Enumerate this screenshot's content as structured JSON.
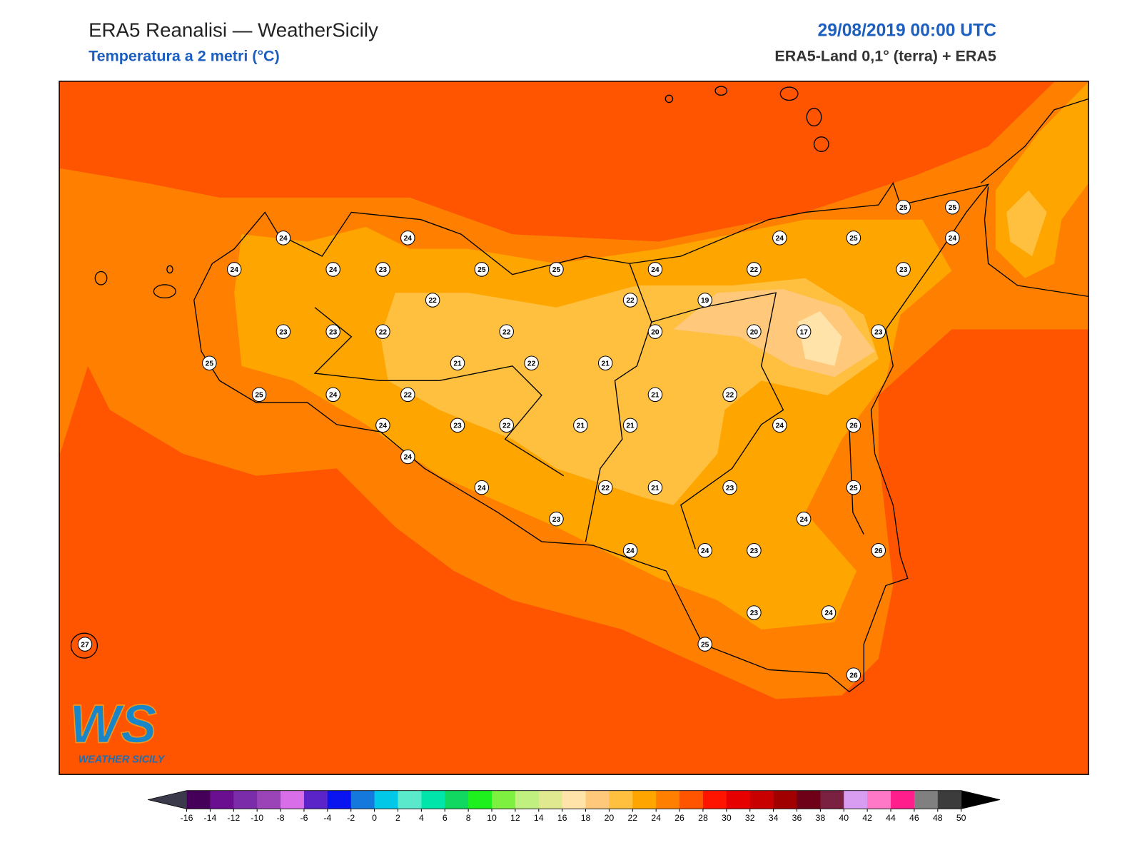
{
  "header": {
    "title": "ERA5 Reanalisi — WeatherSicily",
    "subtitle": "Temperatura a 2 metri (°C)",
    "datetime": "29/08/2019 00:00 UTC",
    "source": "ERA5-Land 0,1° (terra) + ERA5"
  },
  "stations": [
    {
      "value": 24
    },
    {
      "value": 24
    },
    {
      "value": 24
    },
    {
      "value": 24
    },
    {
      "value": 23
    },
    {
      "value": 25
    },
    {
      "value": 25
    },
    {
      "value": 24
    },
    {
      "value": 24
    },
    {
      "value": 25
    },
    {
      "value": 25
    },
    {
      "value": 25
    },
    {
      "value": 24
    },
    {
      "value": 22
    },
    {
      "value": 23
    },
    {
      "value": 22
    },
    {
      "value": 22
    },
    {
      "value": 19
    },
    {
      "value": 23
    },
    {
      "value": 23
    },
    {
      "value": 22
    },
    {
      "value": 22
    },
    {
      "value": 20
    },
    {
      "value": 20
    },
    {
      "value": 17
    },
    {
      "value": 23
    },
    {
      "value": 25
    },
    {
      "value": 21
    },
    {
      "value": 22
    },
    {
      "value": 21
    },
    {
      "value": 25
    },
    {
      "value": 24
    },
    {
      "value": 22
    },
    {
      "value": 21
    },
    {
      "value": 22
    },
    {
      "value": 24
    },
    {
      "value": 23
    },
    {
      "value": 22
    },
    {
      "value": 21
    },
    {
      "value": 21
    },
    {
      "value": 24
    },
    {
      "value": 26
    },
    {
      "value": 24
    },
    {
      "value": 24
    },
    {
      "value": 22
    },
    {
      "value": 21
    },
    {
      "value": 23
    },
    {
      "value": 25
    },
    {
      "value": 24
    },
    {
      "value": 23
    },
    {
      "value": 24
    },
    {
      "value": 24
    },
    {
      "value": 23
    },
    {
      "value": 26
    },
    {
      "value": 23
    },
    {
      "value": 24
    },
    {
      "value": 25
    },
    {
      "value": 27
    },
    {
      "value": 26
    }
  ],
  "colorbar": {
    "ticks": [
      -16,
      -14,
      -12,
      -10,
      -8,
      -6,
      -4,
      -2,
      0,
      2,
      4,
      6,
      8,
      10,
      12,
      14,
      16,
      18,
      20,
      22,
      24,
      26,
      28,
      30,
      32,
      34,
      36,
      38,
      40,
      42,
      44,
      46,
      48,
      50
    ],
    "colors": [
      "#45005a",
      "#6a0f90",
      "#7b2ca8",
      "#9b44b8",
      "#d86ee8",
      "#5a24c8",
      "#0a14f0",
      "#1478dc",
      "#00c8e6",
      "#5aeacb",
      "#00e6aa",
      "#10d860",
      "#1ef01e",
      "#7ef040",
      "#c0f080",
      "#e0e890",
      "#ffe3a8",
      "#ffc87a",
      "#ffc040",
      "#ffa500",
      "#ff8000",
      "#ff5400",
      "#ff1400",
      "#e60000",
      "#c80000",
      "#a00000",
      "#6e0018",
      "#7a2040",
      "#d89cf0",
      "#ff78c8",
      "#ff1e8c",
      "#808080",
      "#3c3c3c"
    ],
    "under_color": "#3a3a4a",
    "over_color": "#000000"
  },
  "logo": {
    "mark": "WS",
    "text": "WEATHER SICILY"
  }
}
